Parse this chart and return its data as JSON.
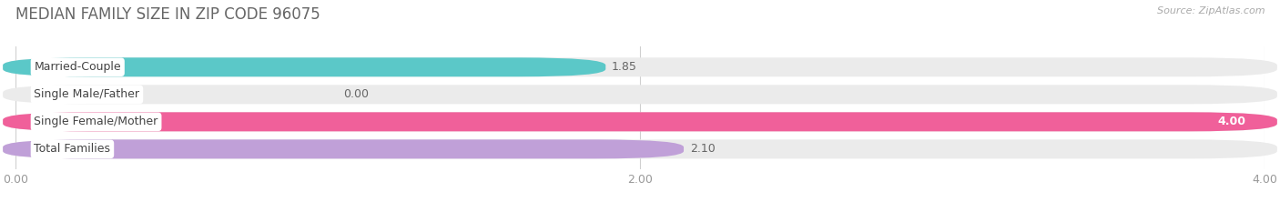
{
  "title": "MEDIAN FAMILY SIZE IN ZIP CODE 96075",
  "source_text": "Source: ZipAtlas.com",
  "categories": [
    "Married-Couple",
    "Single Male/Father",
    "Single Female/Mother",
    "Total Families"
  ],
  "values": [
    1.85,
    0.0,
    4.0,
    2.1
  ],
  "bar_colors": [
    "#5bc8c8",
    "#b0c4ee",
    "#f0609a",
    "#c0a0d8"
  ],
  "xlim": [
    0,
    4.0
  ],
  "xticks": [
    0.0,
    2.0,
    4.0
  ],
  "xticklabels": [
    "0.00",
    "2.00",
    "4.00"
  ],
  "bar_height": 0.62,
  "background_color": "#ffffff",
  "bar_bg_color": "#ebebeb",
  "title_fontsize": 12,
  "label_fontsize": 9,
  "value_fontsize": 9,
  "tick_fontsize": 9,
  "source_fontsize": 8
}
